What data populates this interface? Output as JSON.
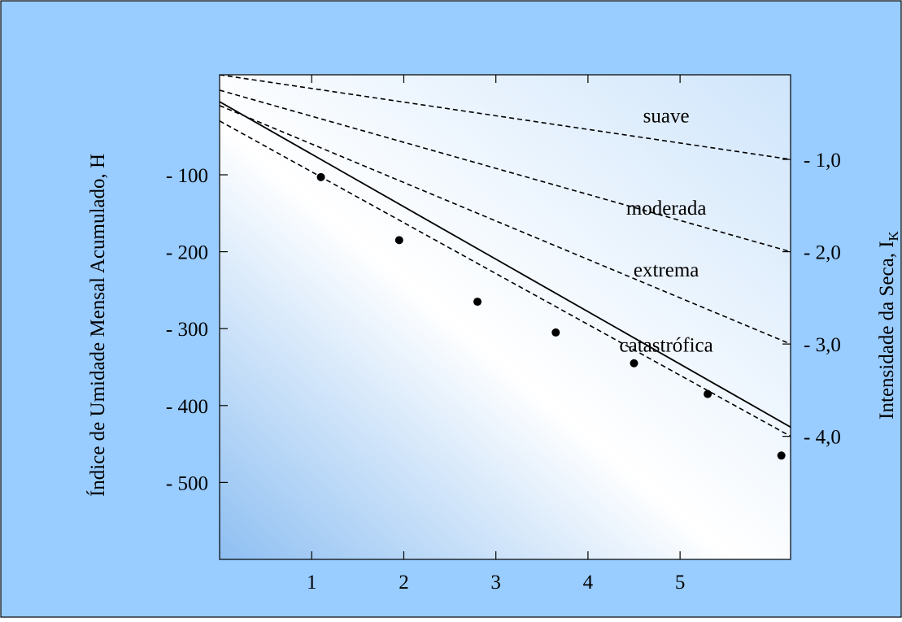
{
  "colors": {
    "background": "#99ccff",
    "plot_light": "#ffffff",
    "plot_tint": "#cfe5fb",
    "plot_deep": "#8ebff2",
    "ink": "#000000"
  },
  "chart_data": {
    "type": "scatter",
    "title": "",
    "xlabel": "",
    "ylabel": "Índice de Umidade Mensal Acumulado, H",
    "y2label": "Intensidade da Seca, I",
    "y2label_subscript": "K",
    "xlim": [
      0,
      6.2
    ],
    "ylim": [
      -600,
      30
    ],
    "x_ticks": [
      1,
      2,
      3,
      4,
      5
    ],
    "x_tick_labels": [
      "1",
      "2",
      "3",
      "4",
      "5"
    ],
    "y_ticks": [
      -100,
      -200,
      -300,
      -400,
      -500
    ],
    "y_tick_labels": [
      "- 100",
      "- 200",
      "- 300",
      "- 400",
      "- 500"
    ],
    "y2_ticks": [
      -80,
      -200,
      -320,
      -440
    ],
    "y2_tick_labels": [
      "- 1,0",
      "- 2,0",
      "- 3,0",
      "- 4,0"
    ],
    "points": {
      "x": [
        1.1,
        1.95,
        2.8,
        3.65,
        4.5,
        5.3,
        6.1
      ],
      "y": [
        -103,
        -185,
        -265,
        -305,
        -345,
        -385,
        -465
      ]
    },
    "fit_line": {
      "x": [
        0,
        6.2
      ],
      "y": [
        -5,
        -428
      ]
    },
    "threshold_lines": [
      {
        "name": "suave",
        "x": [
          0,
          6.2
        ],
        "y": [
          30,
          -80
        ],
        "label_x": 4.85,
        "label_y": -32
      },
      {
        "name": "moderada",
        "x": [
          0,
          6.2
        ],
        "y": [
          10,
          -200
        ],
        "label_x": 4.85,
        "label_y": -152
      },
      {
        "name": "extrema",
        "x": [
          0,
          6.2
        ],
        "y": [
          -10,
          -320
        ],
        "label_x": 4.85,
        "label_y": -232
      },
      {
        "name": "catastrófica",
        "x": [
          0,
          6.2
        ],
        "y": [
          -30,
          -440
        ],
        "label_x": 4.85,
        "label_y": -330
      }
    ],
    "grid": false,
    "legend": "none"
  }
}
